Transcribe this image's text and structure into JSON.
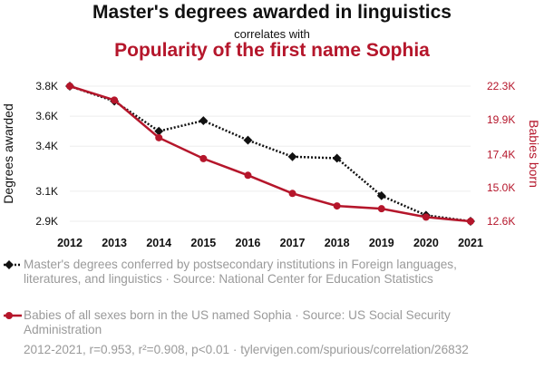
{
  "title_line1": "Master's degrees awarded in linguistics",
  "title_line2": "correlates with",
  "title_line3": "Popularity of the first name Sophia",
  "colors": {
    "left": "#111111",
    "right": "#b5162b",
    "muted": "#9a9a9a"
  },
  "chart_data": {
    "type": "line",
    "x": [
      2012,
      2013,
      2014,
      2015,
      2016,
      2017,
      2018,
      2019,
      2020,
      2021
    ],
    "xtick_labels": [
      "2012",
      "2013",
      "2014",
      "2015",
      "2016",
      "2017",
      "2018",
      "2019",
      "2020",
      "2021"
    ],
    "ylabel_left": "Degrees awarded",
    "ylabel_right": "Babies born",
    "left_ticks": [
      2.9,
      3.1,
      3.4,
      3.6,
      3.8
    ],
    "left_tick_labels": [
      "2.9K",
      "3.1K",
      "3.4K",
      "3.6K",
      "3.8K"
    ],
    "right_ticks": [
      12.6,
      15.0,
      17.4,
      19.9,
      22.3
    ],
    "right_tick_labels": [
      "12.6K",
      "15.0K",
      "17.4K",
      "19.9K",
      "22.3K"
    ],
    "ylim_left": [
      2.9,
      3.8
    ],
    "ylim_right": [
      12.6,
      22.3
    ],
    "series": [
      {
        "axis": "left",
        "marker": "diamond",
        "style": "dotted",
        "values": [
          3.8,
          3.7,
          3.5,
          3.57,
          3.44,
          3.33,
          3.32,
          3.07,
          2.94,
          2.9
        ]
      },
      {
        "axis": "right",
        "marker": "circle",
        "style": "solid",
        "values": [
          22.3,
          21.3,
          18.6,
          17.1,
          15.9,
          14.6,
          13.7,
          13.5,
          12.9,
          12.6
        ]
      }
    ],
    "grid": true
  },
  "legend": [
    {
      "text": "Master's degrees conferred by postsecondary institutions in Foreign languages, literatures, and linguistics · Source: National Center for Education Statistics"
    },
    {
      "text": "Babies of all sexes born in the US named Sophia · Source: US Social Security Administration"
    }
  ],
  "footer": "2012-2021, r=0.953, r²=0.908, p<0.01 · tylervigen.com/spurious/correlation/26832"
}
